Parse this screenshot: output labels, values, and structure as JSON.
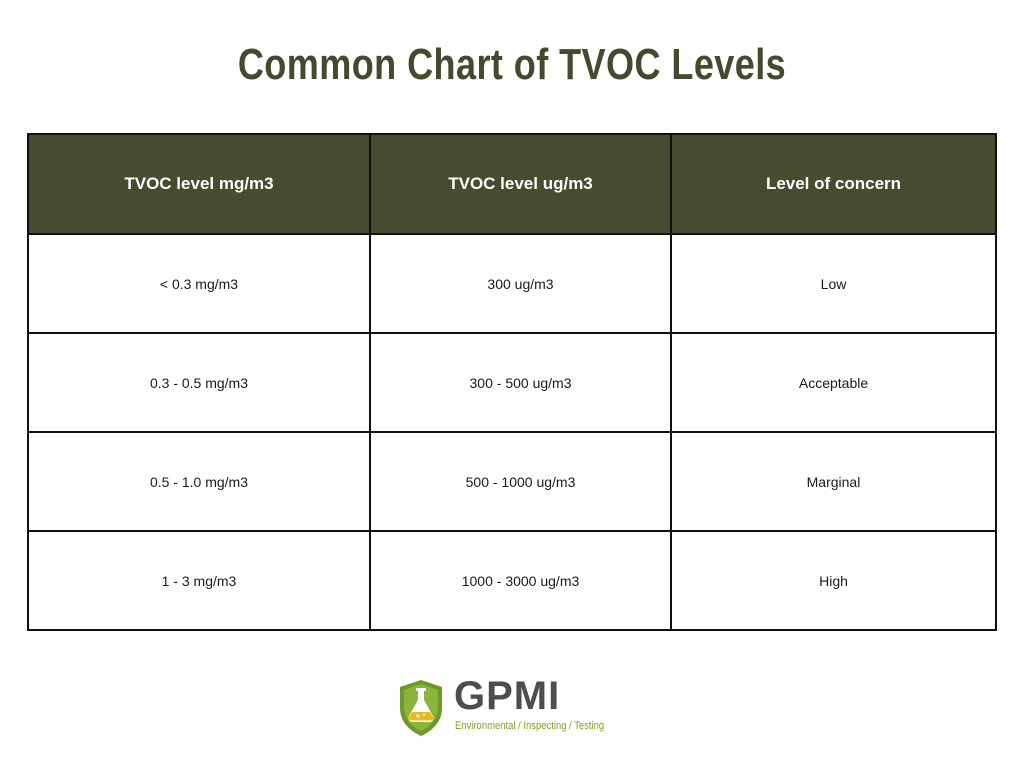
{
  "title": "Common Chart of TVOC Levels",
  "table": {
    "headers": [
      "TVOC level mg/m3",
      "TVOC level ug/m3",
      "Level of concern"
    ],
    "rows": [
      [
        "< 0.3 mg/m3",
        "300 ug/m3",
        "Low"
      ],
      [
        "0.3 - 0.5 mg/m3",
        "300 - 500 ug/m3",
        "Acceptable"
      ],
      [
        "0.5 - 1.0 mg/m3",
        "500 - 1000 ug/m3",
        "Marginal"
      ],
      [
        "1 - 3 mg/m3",
        "1000 - 3000 ug/m3",
        "High"
      ]
    ]
  },
  "logo": {
    "name": "GPMI",
    "tagline": "Environmental / Inspecting / Testing"
  },
  "colors": {
    "title": "#434a2e",
    "header_bg": "#474b30",
    "header_text": "#ffffff",
    "logo_green": "#6b9a2a",
    "logo_yellow": "#e8b825"
  }
}
